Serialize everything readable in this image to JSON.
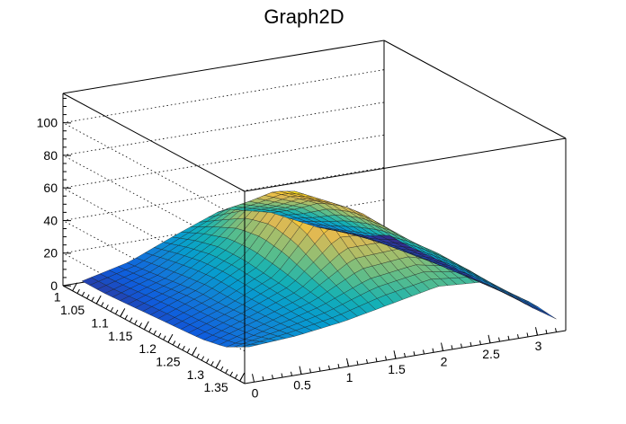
{
  "chart_data": {
    "type": "surface",
    "title": "Graph2D",
    "palette": "kBird",
    "grid": true,
    "x_ticks": [
      "0",
      "0.5",
      "1",
      "1.5",
      "2",
      "2.5",
      "3"
    ],
    "y_ticks": [
      "1",
      "1.05",
      "1.1",
      "1.15",
      "1.2",
      "1.25",
      "1.3",
      "1.35"
    ],
    "z_ticks": [
      "0",
      "20",
      "40",
      "60",
      "80",
      "100"
    ],
    "xlim": [
      -0.1,
      3.3
    ],
    "ylim": [
      0.98,
      1.36
    ],
    "zlim": [
      0,
      118
    ],
    "x_values": [
      0,
      0.5,
      1,
      1.5,
      2,
      2.5,
      3,
      3.25
    ],
    "y_values": [
      1.0,
      1.05,
      1.1,
      1.15,
      1.2,
      1.25,
      1.3,
      1.35
    ],
    "z_values": [
      [
        5,
        12,
        24,
        35,
        28,
        14,
        4,
        2
      ],
      [
        5,
        14,
        30,
        48,
        38,
        20,
        6,
        2
      ],
      [
        6,
        16,
        34,
        62,
        50,
        26,
        8,
        3
      ],
      [
        7,
        18,
        34,
        70,
        56,
        32,
        10,
        4
      ],
      [
        8,
        18,
        32,
        66,
        58,
        36,
        12,
        4
      ],
      [
        9,
        19,
        30,
        52,
        52,
        38,
        14,
        5
      ],
      [
        12,
        20,
        28,
        40,
        44,
        38,
        16,
        5
      ],
      [
        20,
        22,
        26,
        32,
        38,
        36,
        18,
        6
      ]
    ]
  }
}
